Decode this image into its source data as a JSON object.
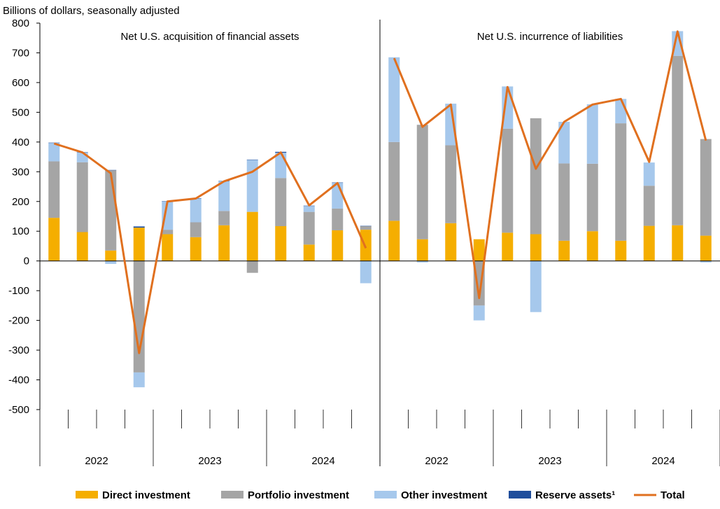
{
  "chart_data": {
    "type": "bar",
    "subtype": "stacked-bar-with-line",
    "ylabel": "Billions of dollars, seasonally adjusted",
    "ylim": [
      -500,
      800
    ],
    "yticks": [
      "800",
      "700",
      "600",
      "500",
      "400",
      "300",
      "200",
      "100",
      "0",
      "-100",
      "-200",
      "-300",
      "-400",
      "-500"
    ],
    "ytick_values": [
      800,
      700,
      600,
      500,
      400,
      300,
      200,
      100,
      0,
      -100,
      -200,
      -300,
      -400,
      -500
    ],
    "colors": {
      "direct": "#F5AE00",
      "portfolio": "#A5A5A5",
      "other": "#A6C8EC",
      "reserve": "#1F4E9C",
      "total": "#E0701F",
      "axis": "#000000",
      "grid": "#000000"
    },
    "legend": [
      {
        "key": "direct",
        "label": "Direct investment"
      },
      {
        "key": "portfolio",
        "label": "Portfolio investment"
      },
      {
        "key": "other",
        "label": "Other investment"
      },
      {
        "key": "reserve",
        "label": "Reserve assets¹"
      },
      {
        "key": "total",
        "label": "Total"
      }
    ],
    "panels": [
      {
        "title": "Net U.S. acquisition of financial assets",
        "years": [
          "2022",
          "2023",
          "2024"
        ],
        "quarters_per_year": 4,
        "series": {
          "direct": [
            145,
            97,
            35,
            112,
            90,
            80,
            120,
            165,
            117,
            55,
            103,
            105
          ],
          "portfolio": [
            190,
            235,
            270,
            -375,
            15,
            50,
            48,
            -40,
            162,
            110,
            73,
            12
          ],
          "other": [
            62,
            33,
            -10,
            -50,
            95,
            80,
            100,
            175,
            85,
            20,
            87,
            -75
          ],
          "reserve": [
            1,
            1,
            1,
            4,
            1,
            1,
            1,
            1,
            3,
            1,
            1,
            1
          ]
        },
        "total": [
          395,
          365,
          295,
          -310,
          200,
          210,
          268,
          300,
          365,
          187,
          262,
          43
        ]
      },
      {
        "title": "Net U.S. incurrence of liabilities",
        "years": [
          "2022",
          "2023",
          "2024"
        ],
        "quarters_per_year": 4,
        "series": {
          "direct": [
            135,
            73,
            127,
            73,
            95,
            90,
            68,
            100,
            68,
            118,
            120,
            85
          ],
          "portfolio": [
            265,
            385,
            262,
            -150,
            350,
            390,
            260,
            227,
            395,
            135,
            570,
            325
          ],
          "other": [
            285,
            -5,
            140,
            -50,
            142,
            -172,
            140,
            200,
            82,
            78,
            83,
            -5
          ],
          "reserve": [
            0,
            0,
            0,
            0,
            0,
            0,
            0,
            0,
            0,
            0,
            0,
            0
          ]
        },
        "total": [
          682,
          451,
          526,
          -125,
          585,
          310,
          468,
          526,
          545,
          333,
          772,
          405
        ]
      }
    ]
  }
}
